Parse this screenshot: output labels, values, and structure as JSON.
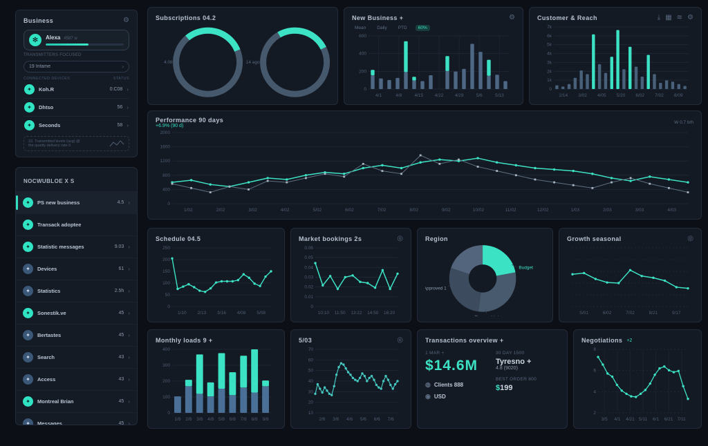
{
  "colors": {
    "bg": "#0c1016",
    "panel": "#141a24",
    "accent": "#3ce2c4",
    "slate": "#46586c",
    "blue": "#4a6f9b",
    "text_dim": "#55657c"
  },
  "sidebar": {
    "title": "Business",
    "header_icon": "gear-icon",
    "profile": {
      "name": "Alexa",
      "meta": "4587 w",
      "progress_pct": 55,
      "caption": "TRANSMITTERS FOCUSED",
      "avatar_icon": "avatar-icon"
    },
    "selector": {
      "label": "19 Intame",
      "chevron": "chevron-right-icon"
    },
    "devices_header": {
      "left": "CONNECTED DEVICES",
      "right": "STATUS"
    },
    "devices": [
      {
        "icon": "spark-icon",
        "label": "Koh.R",
        "value": "0:C08"
      },
      {
        "icon": "spark-icon",
        "label": "Dhtso",
        "value": "56"
      },
      {
        "icon": "spark-icon",
        "label": "Seconds",
        "value": "58"
      }
    ],
    "note": {
      "line1": "10. Transmitted levels (avg) @",
      "line2": "the quality delivery rate 0",
      "icon": "sparkline-icon"
    },
    "sources": {
      "title": "NOCWUBLOE X S",
      "items": [
        {
          "label": "PS new business",
          "value": "4.5",
          "tone": "teal",
          "active": true
        },
        {
          "label": "Transack adoptee",
          "value": "",
          "tone": "teal",
          "active": false
        },
        {
          "label": "Statistic messages",
          "value": "9.03",
          "tone": "teal",
          "active": false
        },
        {
          "label": "Devices",
          "value": "61",
          "tone": "blue",
          "active": false
        },
        {
          "label": "Statistics",
          "value": "2.5h",
          "tone": "blue",
          "active": false
        },
        {
          "label": "Sonestik.ve",
          "value": "45",
          "tone": "teal",
          "active": false
        },
        {
          "label": "Bertastes",
          "value": "45",
          "tone": "blue",
          "active": false
        },
        {
          "label": "Search",
          "value": "43",
          "tone": "blue",
          "active": false
        },
        {
          "label": "Access",
          "value": "43",
          "tone": "blue",
          "active": false
        },
        {
          "label": "Montreal Brian",
          "value": "45",
          "tone": "teal",
          "active": false
        },
        {
          "label": "Messages",
          "value": "45",
          "tone": "blue",
          "active": false
        }
      ]
    }
  },
  "stats": {
    "title": "Transactions overview +",
    "left_label": "1 MAR +",
    "big_value": "$14.6M",
    "rows": [
      {
        "icon": "globe-icon",
        "text": "Clients 888"
      },
      {
        "icon": "coin-icon",
        "text": "USD"
      }
    ],
    "right_top_label": "30 DAY 1500",
    "right_top_value": "Tyresno +",
    "right_top_sub": "4.8 (9020)",
    "right_bottom_label": "BEST ORDER 800",
    "right_bottom_currency": "$",
    "right_bottom_amount": "199"
  },
  "chart_data": [
    {
      "id": "subs",
      "type": "donut-pair",
      "title": "Subscriptions 04.2",
      "donuts": [
        {
          "pct": 0.3,
          "start": -130,
          "label": "4.08"
        },
        {
          "pct": 0.26,
          "start": -120,
          "label": "14 ago"
        }
      ]
    },
    {
      "id": "newbiz",
      "type": "bar",
      "title": "New Business +",
      "header_icon": "gear-icon",
      "tabs": [
        "Mean",
        "Daily",
        "PTD",
        "60%"
      ],
      "active_tab": 3,
      "y_labels": [
        "600",
        "400",
        "200",
        "0"
      ],
      "vgrid": true,
      "bar_w": 0.45,
      "bar_color": "#4d6785",
      "x_labels": [
        "4/1",
        "4/8",
        "4/15",
        "4/22",
        "4/29",
        "5/6",
        "5/13"
      ],
      "bars": [
        {
          "b": 26,
          "t": 10
        },
        {
          "b": 20
        },
        {
          "b": 17
        },
        {
          "b": 21
        },
        {
          "b": 32,
          "t": 58
        },
        {
          "b": 16,
          "t": 7
        },
        {
          "b": 15
        },
        {
          "b": 26
        },
        {
          "b": 0
        },
        {
          "b": 34,
          "t": 28
        },
        {
          "b": 33
        },
        {
          "b": 38
        },
        {
          "b": 85
        },
        {
          "b": 70
        },
        {
          "b": 25,
          "t": 30
        },
        {
          "b": 27
        },
        {
          "b": 15
        }
      ]
    },
    {
      "id": "cust",
      "type": "bar",
      "title": "Customer & Reach",
      "toolbar": [
        "download-icon",
        "layout-icon",
        "filter-icon",
        "gear-icon"
      ],
      "y_labels": [
        "7k",
        "6k",
        "5k",
        "4k",
        "3k",
        "2k",
        "1k",
        "0"
      ],
      "bar_w": 0.5,
      "bar_color": "#486079",
      "x_labels": [
        "2/14",
        "3/02",
        "4/05",
        "5/20",
        "6/02",
        "7/02",
        "8/09"
      ],
      "bars": [
        {
          "b": 6
        },
        {
          "b": 4
        },
        {
          "b": 8
        },
        {
          "b": 18
        },
        {
          "b": 30
        },
        {
          "b": 24
        },
        {
          "t": 88
        },
        {
          "b": 40
        },
        {
          "b": 26
        },
        {
          "t": 52
        },
        {
          "t": 95
        },
        {
          "b": 32
        },
        {
          "t": 68
        },
        {
          "b": 36
        },
        {
          "b": 20
        },
        {
          "t": 55
        },
        {
          "b": 24
        },
        {
          "b": 10
        },
        {
          "b": 14
        },
        {
          "b": 12
        },
        {
          "b": 8
        },
        {
          "b": 5
        }
      ]
    },
    {
      "id": "perf",
      "type": "line",
      "title": "Performance 90 days",
      "subtitle": "+6.9% (90 d)",
      "legend": "W  0.7  b/h",
      "y_labels": [
        "2000",
        "1600",
        "1200",
        "800",
        "400",
        "0"
      ],
      "x_labels": [
        "1/02",
        "2/02",
        "3/02",
        "4/02",
        "5/02",
        "6/02",
        "7/02",
        "8/02",
        "9/02",
        "10/02",
        "11/02",
        "12/02",
        "1/03",
        "2/03",
        "3/03",
        "4/03"
      ],
      "series": [
        {
          "name": "current",
          "color": "#3ce2c4",
          "width": 1.5,
          "marker": "circle",
          "values": [
            30,
            33,
            27,
            24,
            30,
            36,
            34,
            40,
            44,
            42,
            50,
            54,
            50,
            58,
            62,
            60,
            64,
            58,
            54,
            50,
            48,
            46,
            42,
            36,
            32,
            38,
            34,
            30
          ]
        },
        {
          "name": "previous",
          "color": "#5f7080",
          "width": 1,
          "marker": "square",
          "marker_color": "#a9b6c3",
          "values": [
            28,
            22,
            16,
            24,
            20,
            32,
            30,
            36,
            42,
            38,
            56,
            46,
            42,
            68,
            56,
            62,
            52,
            46,
            40,
            34,
            30,
            26,
            22,
            30,
            36,
            28,
            22,
            16
          ]
        }
      ]
    },
    {
      "id": "sched",
      "type": "line",
      "title": "Schedule 04.5",
      "y_labels": [
        "250",
        "200",
        "150",
        "100",
        "50",
        "0"
      ],
      "x_labels": [
        "1/10",
        "2/13",
        "3/16",
        "4/08",
        "5/08"
      ],
      "series": [
        {
          "name": "scheduled",
          "color": "#3ce2c4",
          "width": 1.4,
          "marker": "circle",
          "values": [
            82,
            30,
            34,
            38,
            33,
            27,
            25,
            31,
            41,
            43,
            43,
            43,
            45,
            55,
            49,
            39,
            35,
            51,
            60
          ]
        }
      ]
    },
    {
      "id": "market",
      "type": "line",
      "title": "Market bookings 2s",
      "header_icon": "help-icon",
      "y_labels": [
        "0.06",
        "0.05",
        "0.04",
        "0.03",
        "0.02",
        "0.01",
        "0"
      ],
      "x_labels": [
        "10:10",
        "11:50",
        "13:22",
        "14:50",
        "16:20"
      ],
      "series": [
        {
          "name": "bookings",
          "color": "#3ce2c4",
          "width": 1.5,
          "marker": "circle",
          "values": [
            74,
            36,
            52,
            30,
            50,
            53,
            42,
            40,
            32,
            62,
            30,
            56
          ]
        }
      ]
    },
    {
      "id": "region",
      "type": "donut",
      "title": "Region",
      "slices": [
        {
          "pct": 0.22,
          "color": "#3ce2c4",
          "label": "Budget"
        },
        {
          "pct": 0.3,
          "color": "#475a6e",
          "label": "Forecast"
        },
        {
          "pct": 0.28,
          "color": "#3c4b5d",
          "label": "Approved 1"
        },
        {
          "pct": 0.2,
          "color": "#52657c",
          "label": ""
        }
      ],
      "labels": [
        {
          "text": "Budget",
          "pos": "r",
          "color": "#3ce2c4"
        },
        {
          "text": "Forecast tot",
          "pos": "b",
          "color": "#8b99aa"
        },
        {
          "text": "Approved 1",
          "pos": "l",
          "color": "#8b99aa"
        }
      ]
    },
    {
      "id": "growth",
      "type": "line",
      "title": "Growth seasonal",
      "header_icon": "help-icon",
      "grid_rows": 6,
      "dotted": true,
      "x_labels": [
        "5/01",
        "6/02",
        "7/02",
        "8/21",
        "9/17"
      ],
      "series": [
        {
          "name": "growth",
          "color": "#3ce2c4",
          "width": 1.5,
          "marker": "circle",
          "values": [
            55,
            57,
            47,
            41,
            40,
            62,
            52,
            49,
            44,
            33,
            31
          ]
        }
      ]
    },
    {
      "id": "monthly",
      "type": "bar",
      "title": "Monthly loads 9 +",
      "y_labels": [
        "400",
        "300",
        "200",
        "100",
        "0"
      ],
      "bar_w": 0.62,
      "bar_color": "#4a7097",
      "x_labels": [
        "1/8",
        "2/8",
        "3/8",
        "4/8",
        "5/8",
        "6/8",
        "7/8",
        "8/8",
        "9/8"
      ],
      "bars": [
        {
          "b": 26
        },
        {
          "b": 42,
          "t": 10
        },
        {
          "b": 30,
          "t": 62
        },
        {
          "b": 26,
          "t": 22
        },
        {
          "b": 38,
          "t": 56
        },
        {
          "b": 28,
          "t": 36
        },
        {
          "b": 40,
          "t": 50
        },
        {
          "b": 32,
          "t": 68
        },
        {
          "b": 42,
          "t": 9
        }
      ]
    },
    {
      "id": "load",
      "type": "line",
      "title": "5/03",
      "header_icon": "help-icon",
      "y_labels": [
        "70",
        "60",
        "50",
        "40",
        "30",
        "20",
        "10"
      ],
      "x_labels": [
        "2/6",
        "3/6",
        "4/6",
        "5/6",
        "6/6",
        "7/6"
      ],
      "series": [
        {
          "name": "load",
          "color": "#45c8c0",
          "width": 1.2,
          "marker": "circle",
          "values": [
            30,
            45,
            38,
            32,
            40,
            35,
            30,
            28,
            42,
            60,
            72,
            78,
            76,
            70,
            64,
            60,
            55,
            52,
            50,
            55,
            62,
            58,
            50,
            55,
            58,
            52,
            44,
            40,
            38,
            50,
            58,
            52,
            44,
            38,
            45,
            50
          ]
        }
      ]
    },
    {
      "id": "nego",
      "type": "line",
      "title": "Negotiations",
      "subtitle": "+2",
      "y_labels": [
        "8",
        "6",
        "4",
        "2"
      ],
      "vgrid": true,
      "dotted": true,
      "x_labels": [
        "3/5",
        "4/1",
        "4/21",
        "5/11",
        "6/1",
        "6/21",
        "7/11"
      ],
      "series": [
        {
          "name": "negotiations",
          "color": "#3ce2c4",
          "width": 1.3,
          "marker": "circle",
          "values": [
            88,
            76,
            62,
            57,
            44,
            35,
            30,
            26,
            25,
            30,
            36,
            46,
            60,
            70,
            73,
            67,
            64,
            66,
            42,
            22
          ]
        }
      ]
    }
  ]
}
